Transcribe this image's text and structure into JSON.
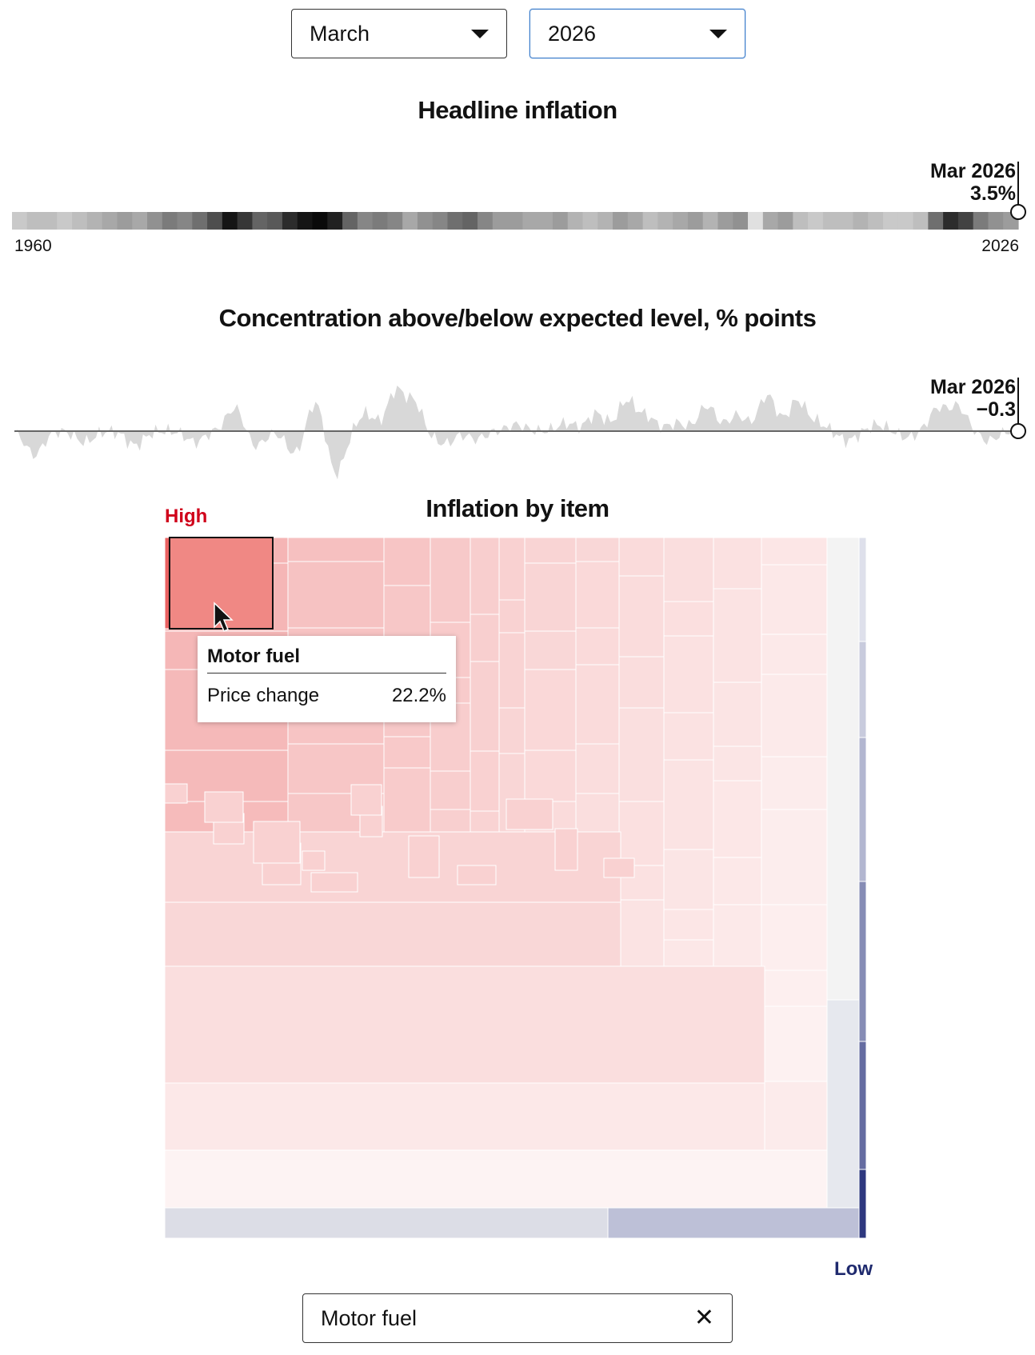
{
  "controls": {
    "month": "March",
    "year": "2026"
  },
  "headline": {
    "title": "Headline inflation",
    "start_label": "1960",
    "end_label": "2026",
    "marker_date": "Mar 2026",
    "marker_value": "3.5%"
  },
  "concentration": {
    "title": "Concentration above/below expected level, % points",
    "marker_date": "Mar 2026",
    "marker_value": "−0.3"
  },
  "items": {
    "title": "Inflation by item",
    "high_label": "High",
    "low_label": "Low",
    "tooltip": {
      "item": "Motor fuel",
      "metric_label": "Price change",
      "metric_value": "22.2%"
    },
    "highlight_color": "#f08884",
    "high_color": "#d0021b",
    "low_color": "#1f2a6e"
  },
  "search": {
    "value": "Motor fuel",
    "clear_icon": "close-icon"
  },
  "chart_data": [
    {
      "type": "heatmap",
      "title": "Headline inflation",
      "x": [
        "1960",
        "2026"
      ],
      "marker": {
        "x": "Mar 2026",
        "value": 3.5
      },
      "intensity": [
        0.15,
        0.2,
        0.2,
        0.15,
        0.2,
        0.25,
        0.3,
        0.35,
        0.3,
        0.4,
        0.5,
        0.45,
        0.55,
        0.7,
        0.95,
        0.8,
        0.6,
        0.65,
        0.85,
        0.95,
        1.0,
        0.9,
        0.6,
        0.45,
        0.5,
        0.45,
        0.3,
        0.4,
        0.45,
        0.55,
        0.6,
        0.45,
        0.35,
        0.35,
        0.3,
        0.3,
        0.35,
        0.25,
        0.2,
        0.25,
        0.35,
        0.3,
        0.2,
        0.25,
        0.3,
        0.35,
        0.25,
        0.35,
        0.4,
        0.05,
        0.3,
        0.35,
        0.2,
        0.15,
        0.2,
        0.2,
        0.25,
        0.2,
        0.15,
        0.15,
        0.2,
        0.55,
        0.85,
        0.75,
        0.5,
        0.4,
        0.35
      ]
    },
    {
      "type": "area",
      "title": "Concentration above/below expected level, % points",
      "x": [
        "1960",
        "2026"
      ],
      "marker": {
        "x": "Mar 2026",
        "value": -0.3
      }
    }
  ]
}
